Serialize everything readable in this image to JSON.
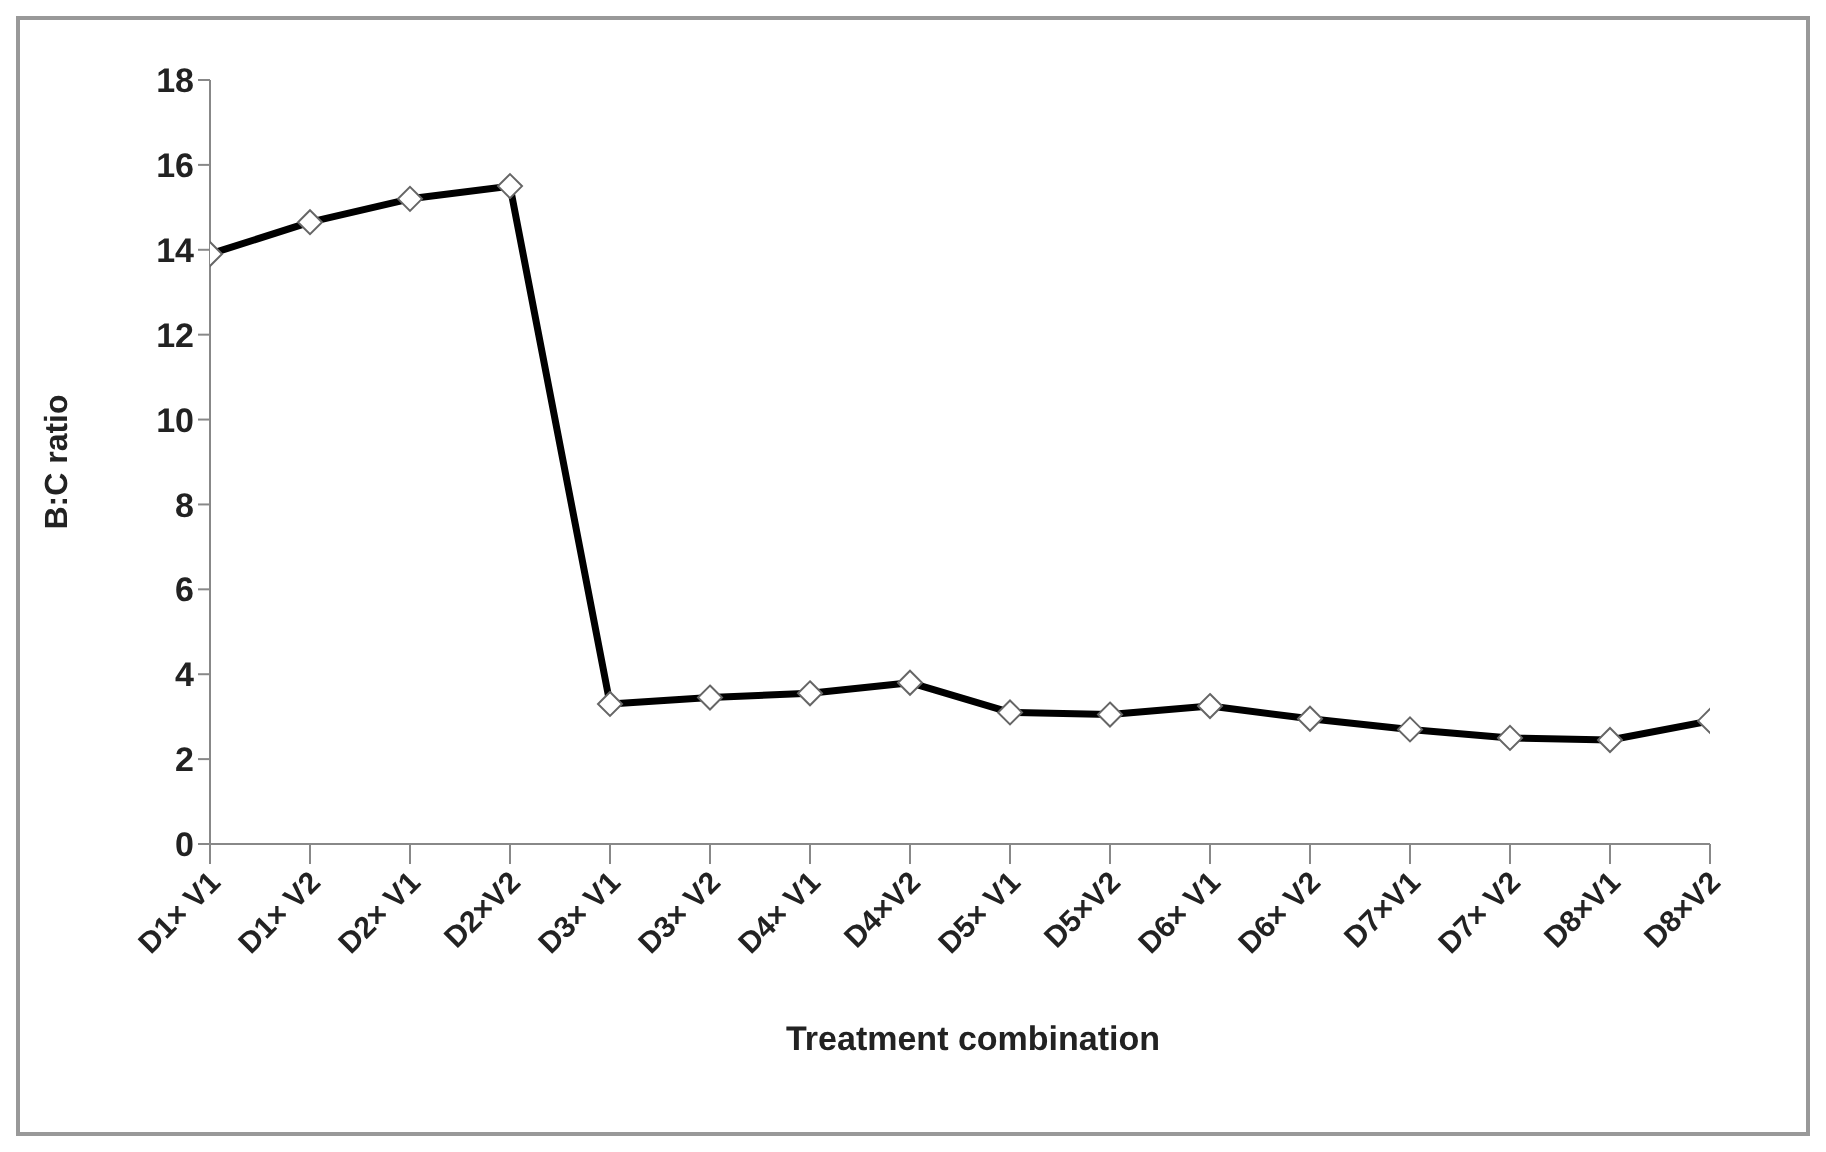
{
  "chart_data": {
    "type": "line",
    "xlabel": "Treatment combination",
    "ylabel": "B:C ratio",
    "categories": [
      "D1× V1",
      "D1× V2",
      "D2× V1",
      "D2×V2",
      "D3× V1",
      "D3× V2",
      "D4× V1",
      "D4×V2",
      "D5× V1",
      "D5×V2",
      "D6× V1",
      "D6× V2",
      "D7×V1",
      "D7× V2",
      "D8×V1",
      "D8×V2"
    ],
    "series": [
      {
        "color": "#000000",
        "values": [
          13.9,
          14.65,
          15.2,
          15.5,
          3.3,
          3.45,
          3.55,
          3.8,
          3.1,
          3.05,
          3.25,
          2.95,
          2.7,
          2.5,
          2.45,
          2.9
        ]
      }
    ],
    "ylim": [
      0,
      18
    ],
    "yticks": [
      0,
      2,
      4,
      6,
      8,
      10,
      12,
      14,
      16,
      18
    ],
    "grid": false,
    "legend": false,
    "marker": "diamond",
    "line_style": "solid"
  }
}
